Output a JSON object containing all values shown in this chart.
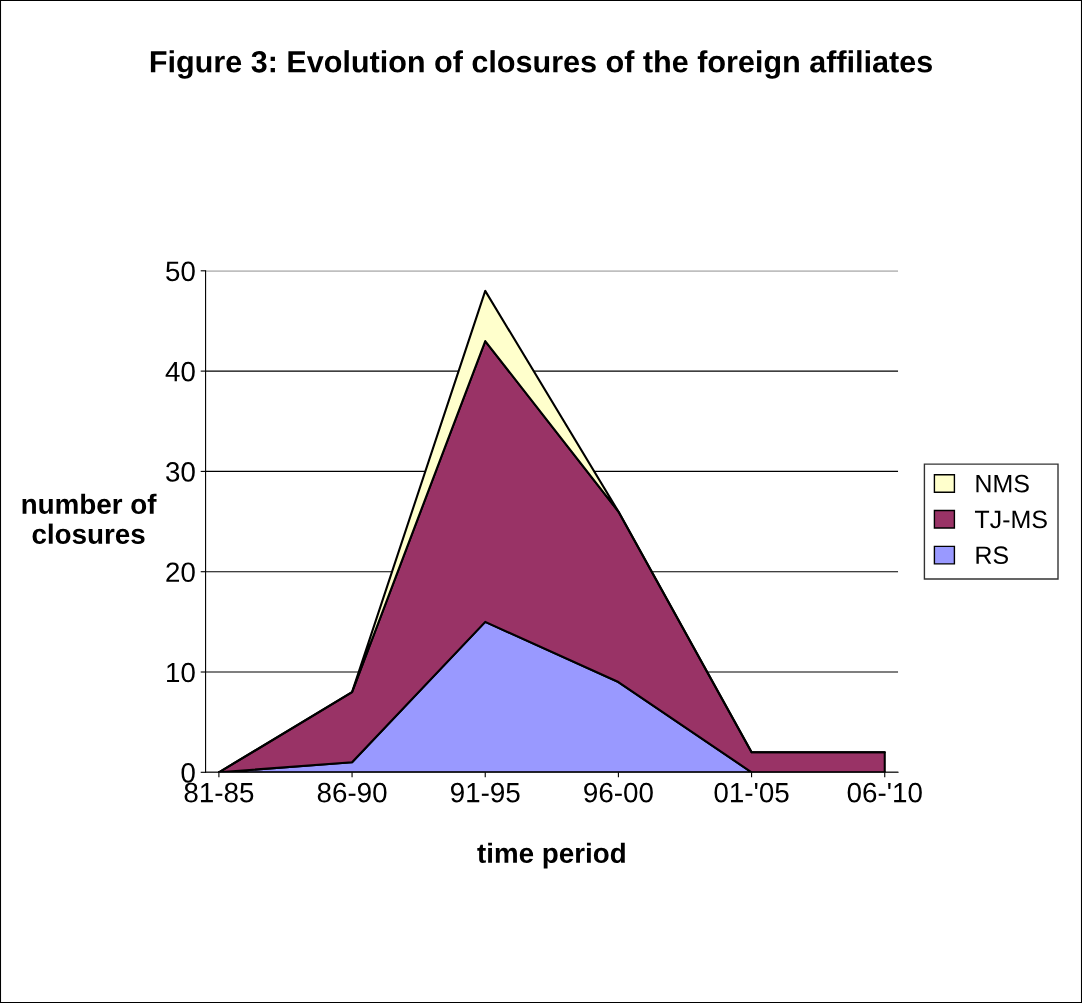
{
  "chart_data": {
    "type": "area",
    "stacked": true,
    "title": "Figure 3: Evolution of closures of the foreign affiliates",
    "xlabel": "time period",
    "ylabel": "number of\nclosures",
    "categories": [
      "81-85",
      "86-90",
      "91-95",
      "96-00",
      "01-'05",
      "06-'10"
    ],
    "series": [
      {
        "name": "RS",
        "color": "#9999ff",
        "values": [
          0,
          1,
          15,
          9,
          0,
          0
        ]
      },
      {
        "name": "TJ-MS",
        "color": "#993366",
        "values": [
          0,
          7,
          28,
          17,
          2,
          2
        ]
      },
      {
        "name": "NMS",
        "color": "#ffffcc",
        "values": [
          0,
          0,
          5,
          0,
          0,
          0
        ]
      }
    ],
    "ylim": [
      0,
      50
    ],
    "yticks": [
      0,
      10,
      20,
      30,
      40,
      50
    ],
    "grid": "y",
    "legend": "right"
  }
}
